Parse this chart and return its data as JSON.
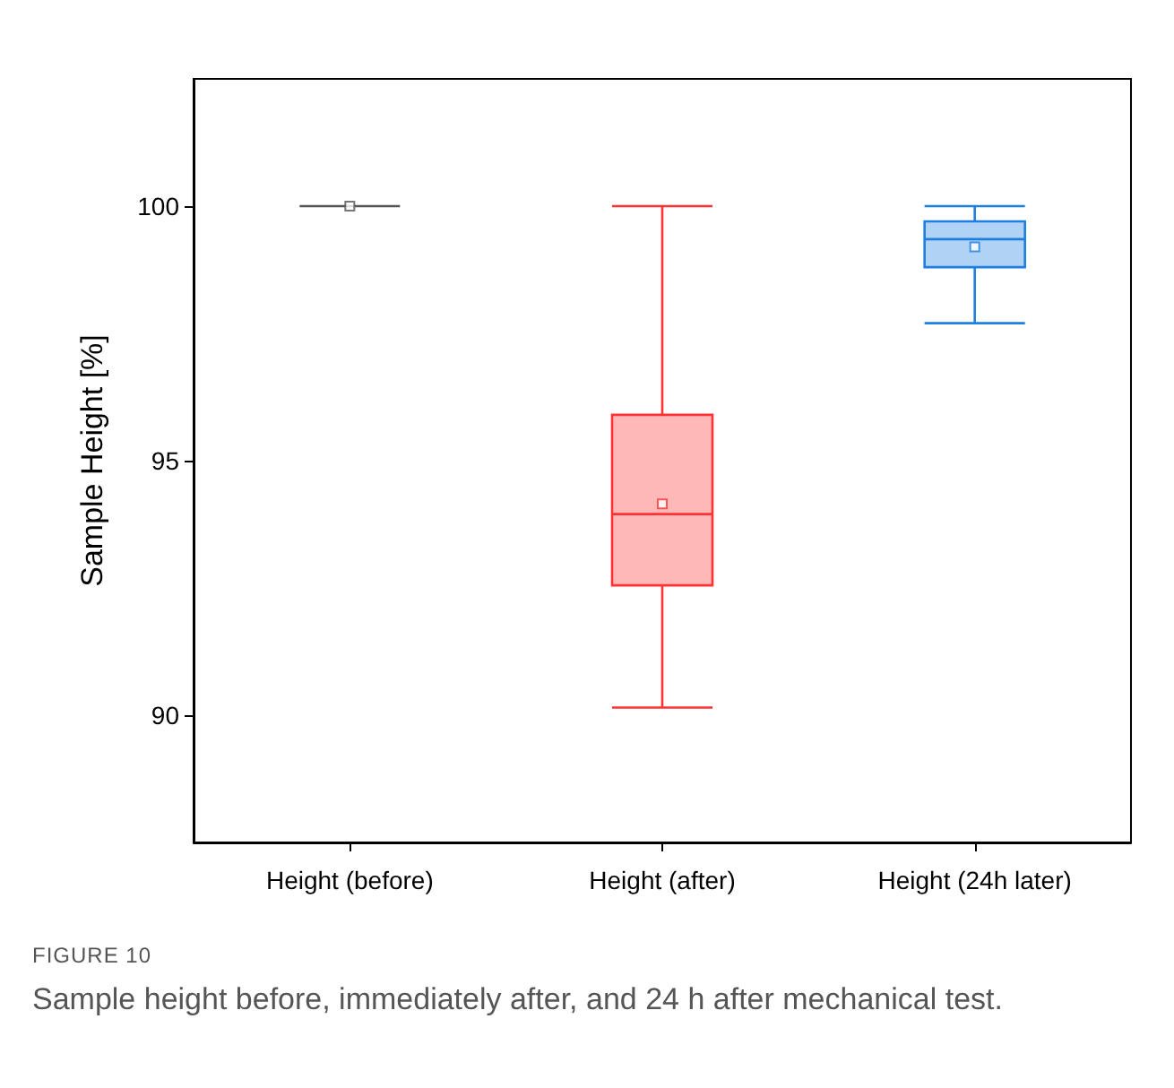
{
  "chart_data": {
    "type": "box",
    "ylabel": "Sample Height [%]",
    "categories": [
      "Height (before)",
      "Height (after)",
      "Height (24h later)"
    ],
    "colors": [
      "#555555",
      "#ff3333",
      "#1e7fe0"
    ],
    "boxes": [
      {
        "low": 100,
        "q1": 100,
        "median": 100,
        "q3": 100,
        "high": 100,
        "mean": 100
      },
      {
        "low": 90.15,
        "q1": 92.55,
        "median": 93.95,
        "q3": 95.9,
        "high": 100,
        "mean": 94.15
      },
      {
        "low": 97.7,
        "q1": 98.8,
        "median": 99.35,
        "q3": 99.7,
        "high": 100,
        "mean": 99.2
      }
    ],
    "ylim": [
      87.5,
      102.5
    ],
    "yticks": [
      90,
      95,
      100
    ],
    "grid": false,
    "annotations": [
      "FIGURE 10",
      "Sample height before, immediately after, and 24 h after mechanical test."
    ]
  }
}
